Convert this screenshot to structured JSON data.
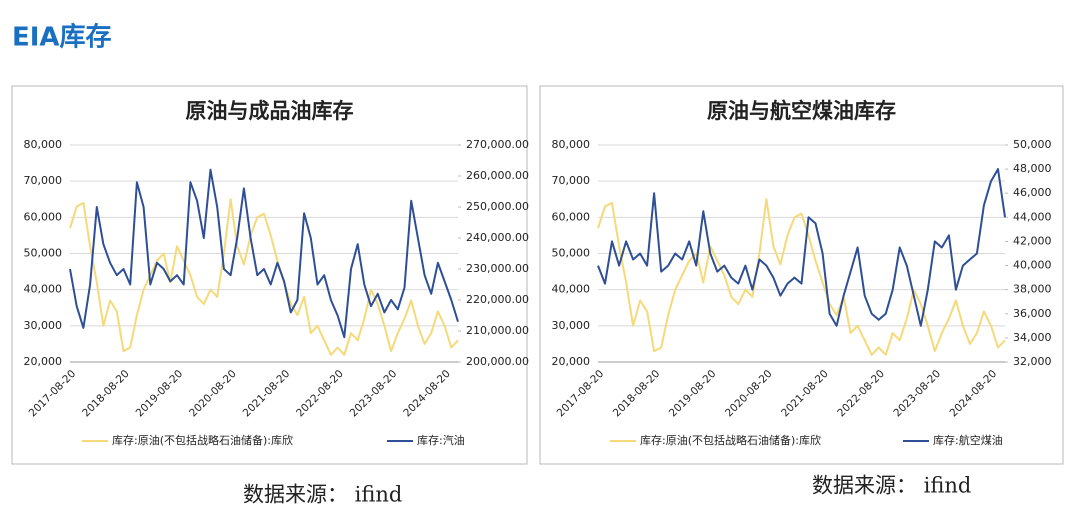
{
  "header": {
    "title": "EIA库存"
  },
  "sources": [
    "数据来源：  ifind",
    "数据来源：  ifind"
  ],
  "chart_data": [
    {
      "type": "line",
      "title": "原油与成品油库存",
      "categories": [
        "2017-08-20",
        null,
        null,
        null,
        null,
        null,
        null,
        null,
        "2018-08-20",
        null,
        null,
        null,
        null,
        null,
        null,
        null,
        "2019-08-20",
        null,
        null,
        null,
        null,
        null,
        null,
        null,
        "2020-08-20",
        null,
        null,
        null,
        null,
        null,
        null,
        null,
        "2021-08-20",
        null,
        null,
        null,
        null,
        null,
        null,
        null,
        "2022-08-20",
        null,
        null,
        null,
        null,
        null,
        null,
        null,
        "2023-08-20",
        null,
        null,
        null,
        null,
        null,
        null,
        null,
        "2024-08-20",
        null,
        null
      ],
      "ylim": [
        20000,
        80000
      ],
      "yticks": [
        {
          "value": 20000,
          "label": "20,000"
        },
        {
          "value": 30000,
          "label": "30,000"
        },
        {
          "value": 40000,
          "label": "40,000"
        },
        {
          "value": 50000,
          "label": "50,000"
        },
        {
          "value": 60000,
          "label": "60,000"
        },
        {
          "value": 70000,
          "label": "70,000"
        },
        {
          "value": 80000,
          "label": "80,000"
        }
      ],
      "y2lim": [
        200000,
        270000
      ],
      "y2ticks": [
        {
          "value": 200000,
          "label": "200,000.00"
        },
        {
          "value": 210000,
          "label": "210,000.00"
        },
        {
          "value": 220000,
          "label": "220,000.00"
        },
        {
          "value": 230000,
          "label": "230,000.00"
        },
        {
          "value": 240000,
          "label": "240,000.00"
        },
        {
          "value": 250000,
          "label": "250,000.00"
        },
        {
          "value": 260000,
          "label": "260,000.00"
        },
        {
          "value": 270000,
          "label": "270,000.00"
        }
      ],
      "grid": true,
      "series": [
        {
          "name": "库存:原油(不包括战略石油储备):库欣",
          "color": "#f5d97a",
          "axis": "y",
          "values": [
            57000,
            63000,
            64000,
            52000,
            42000,
            30000,
            37000,
            34000,
            23000,
            24000,
            33000,
            40000,
            44000,
            48000,
            50000,
            42000,
            52000,
            48000,
            44000,
            38000,
            36000,
            40000,
            38000,
            50000,
            65000,
            52000,
            47000,
            55000,
            60000,
            61000,
            55000,
            48000,
            42000,
            36000,
            33000,
            38000,
            28000,
            30000,
            26000,
            22000,
            24000,
            22000,
            28000,
            26000,
            32000,
            40000,
            36000,
            30000,
            23000,
            28000,
            32000,
            37000,
            30000,
            25000,
            28000,
            34000,
            30000,
            24000,
            26000
          ]
        },
        {
          "name": "库存:汽油",
          "color": "#2e4f96",
          "axis": "y2",
          "values": [
            230000,
            218000,
            211000,
            225000,
            250000,
            238000,
            232000,
            228000,
            230000,
            225000,
            258000,
            250000,
            225000,
            232000,
            230000,
            226000,
            228000,
            225000,
            258000,
            252000,
            240000,
            262000,
            250000,
            230000,
            228000,
            240000,
            256000,
            240000,
            228000,
            230000,
            225000,
            232000,
            226000,
            216000,
            220000,
            248000,
            240000,
            225000,
            228000,
            220000,
            215000,
            208000,
            230000,
            238000,
            225000,
            218000,
            222000,
            216000,
            220000,
            217000,
            224000,
            252000,
            240000,
            228000,
            222000,
            232000,
            226000,
            220000,
            213000
          ]
        }
      ]
    },
    {
      "type": "line",
      "title": "原油与航空煤油库存",
      "categories": [
        "2017-08-20",
        null,
        null,
        null,
        null,
        null,
        null,
        null,
        "2018-08-20",
        null,
        null,
        null,
        null,
        null,
        null,
        null,
        "2019-08-20",
        null,
        null,
        null,
        null,
        null,
        null,
        null,
        "2020-08-20",
        null,
        null,
        null,
        null,
        null,
        null,
        null,
        "2021-08-20",
        null,
        null,
        null,
        null,
        null,
        null,
        null,
        "2022-08-20",
        null,
        null,
        null,
        null,
        null,
        null,
        null,
        "2023-08-20",
        null,
        null,
        null,
        null,
        null,
        null,
        null,
        "2024-08-20",
        null,
        null
      ],
      "ylim": [
        20000,
        80000
      ],
      "yticks": [
        {
          "value": 20000,
          "label": "20,000"
        },
        {
          "value": 30000,
          "label": "30,000"
        },
        {
          "value": 40000,
          "label": "40,000"
        },
        {
          "value": 50000,
          "label": "50,000"
        },
        {
          "value": 60000,
          "label": "60,000"
        },
        {
          "value": 70000,
          "label": "70,000"
        },
        {
          "value": 80000,
          "label": "80,000"
        }
      ],
      "y2lim": [
        32000,
        50000
      ],
      "y2ticks": [
        {
          "value": 32000,
          "label": "32,000"
        },
        {
          "value": 34000,
          "label": "34,000"
        },
        {
          "value": 36000,
          "label": "36,000"
        },
        {
          "value": 38000,
          "label": "38,000"
        },
        {
          "value": 40000,
          "label": "40,000"
        },
        {
          "value": 42000,
          "label": "42,000"
        },
        {
          "value": 44000,
          "label": "44,000"
        },
        {
          "value": 46000,
          "label": "46,000"
        },
        {
          "value": 48000,
          "label": "48,000"
        },
        {
          "value": 50000,
          "label": "50,000"
        }
      ],
      "grid": true,
      "series": [
        {
          "name": "库存:原油(不包括战略石油储备):库欣",
          "color": "#f5d97a",
          "axis": "y",
          "values": [
            57000,
            63000,
            64000,
            52000,
            42000,
            30000,
            37000,
            34000,
            23000,
            24000,
            33000,
            40000,
            44000,
            48000,
            50000,
            42000,
            52000,
            48000,
            44000,
            38000,
            36000,
            40000,
            38000,
            50000,
            65000,
            52000,
            47000,
            55000,
            60000,
            61000,
            55000,
            48000,
            42000,
            36000,
            33000,
            38000,
            28000,
            30000,
            26000,
            22000,
            24000,
            22000,
            28000,
            26000,
            32000,
            40000,
            36000,
            30000,
            23000,
            28000,
            32000,
            37000,
            30000,
            25000,
            28000,
            34000,
            30000,
            24000,
            26000
          ]
        },
        {
          "name": "库存:航空煤油",
          "color": "#2e4f96",
          "axis": "y2",
          "values": [
            40000,
            38500,
            42000,
            40000,
            42000,
            40500,
            41000,
            40000,
            46000,
            39500,
            40000,
            41000,
            40500,
            42000,
            40000,
            44500,
            41000,
            39500,
            40000,
            39000,
            38500,
            40000,
            38000,
            40500,
            40000,
            39000,
            37500,
            38500,
            39000,
            38500,
            44000,
            43500,
            41000,
            36000,
            35000,
            37500,
            39500,
            41500,
            37500,
            36000,
            35500,
            36000,
            38000,
            41500,
            40000,
            37500,
            35000,
            38000,
            42000,
            41500,
            42500,
            38000,
            40000,
            40500,
            41000,
            45000,
            47000,
            48000,
            44000
          ]
        }
      ]
    }
  ]
}
